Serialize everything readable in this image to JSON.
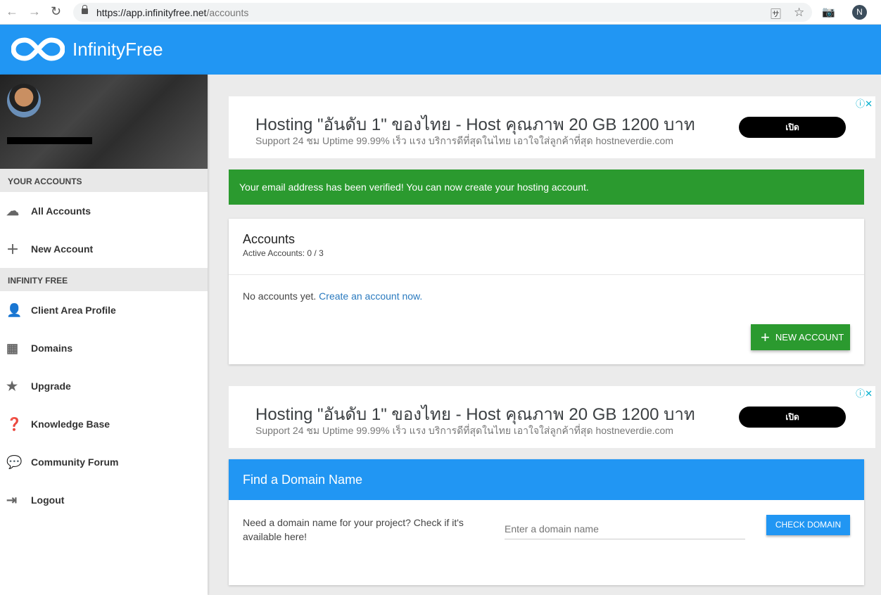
{
  "browser": {
    "url_host": "https://app.infinityfree.net",
    "url_path": "/accounts",
    "profile_initial": "N"
  },
  "header": {
    "brand": "InfinityFree",
    "brand_color": "#2196f3"
  },
  "sidebar": {
    "sections": [
      {
        "title": "YOUR ACCOUNTS",
        "items": [
          {
            "label": "All Accounts",
            "icon": "cloud-icon"
          },
          {
            "label": "New Account",
            "icon": "plus-icon"
          }
        ]
      },
      {
        "title": "INFINITY FREE",
        "items": [
          {
            "label": "Client Area Profile",
            "icon": "person-icon"
          },
          {
            "label": "Domains",
            "icon": "building-icon"
          },
          {
            "label": "Upgrade",
            "icon": "star-icon"
          },
          {
            "label": "Knowledge Base",
            "icon": "help-icon"
          },
          {
            "label": "Community Forum",
            "icon": "forum-icon"
          },
          {
            "label": "Logout",
            "icon": "logout-icon"
          }
        ]
      }
    ]
  },
  "ads": [
    {
      "title": "Hosting \"อันดับ 1\" ของไทย - Host คุณภาพ 20 GB 1200 บาท",
      "subtitle": "Support 24 ชม Uptime 99.99% เร็ว แรง บริการดีที่สุดในไทย เอาใจใส่ลูกค้าที่สุด hostneverdie.com",
      "button": "เปิด"
    },
    {
      "title": "Hosting \"อันดับ 1\" ของไทย - Host คุณภาพ 20 GB 1200 บาท",
      "subtitle": "Support 24 ชม Uptime 99.99% เร็ว แรง บริการดีที่สุดในไทย เอาใจใส่ลูกค้าที่สุด hostneverdie.com",
      "button": "เปิด"
    }
  ],
  "alert": {
    "text": "Your email address has been verified! You can now create your hosting account.",
    "color": "#2b9a2f"
  },
  "accounts": {
    "title": "Accounts",
    "active_label": "Active Accounts: ",
    "active_value": "0 / 3",
    "empty_text": "No accounts yet. ",
    "empty_link": "Create an account now.",
    "new_button": "NEW ACCOUNT"
  },
  "domain": {
    "title": "Find a Domain Name",
    "text": "Need a domain name for your project? Check if it's available here!",
    "placeholder": "Enter a domain name",
    "button": "CHECK DOMAIN"
  }
}
